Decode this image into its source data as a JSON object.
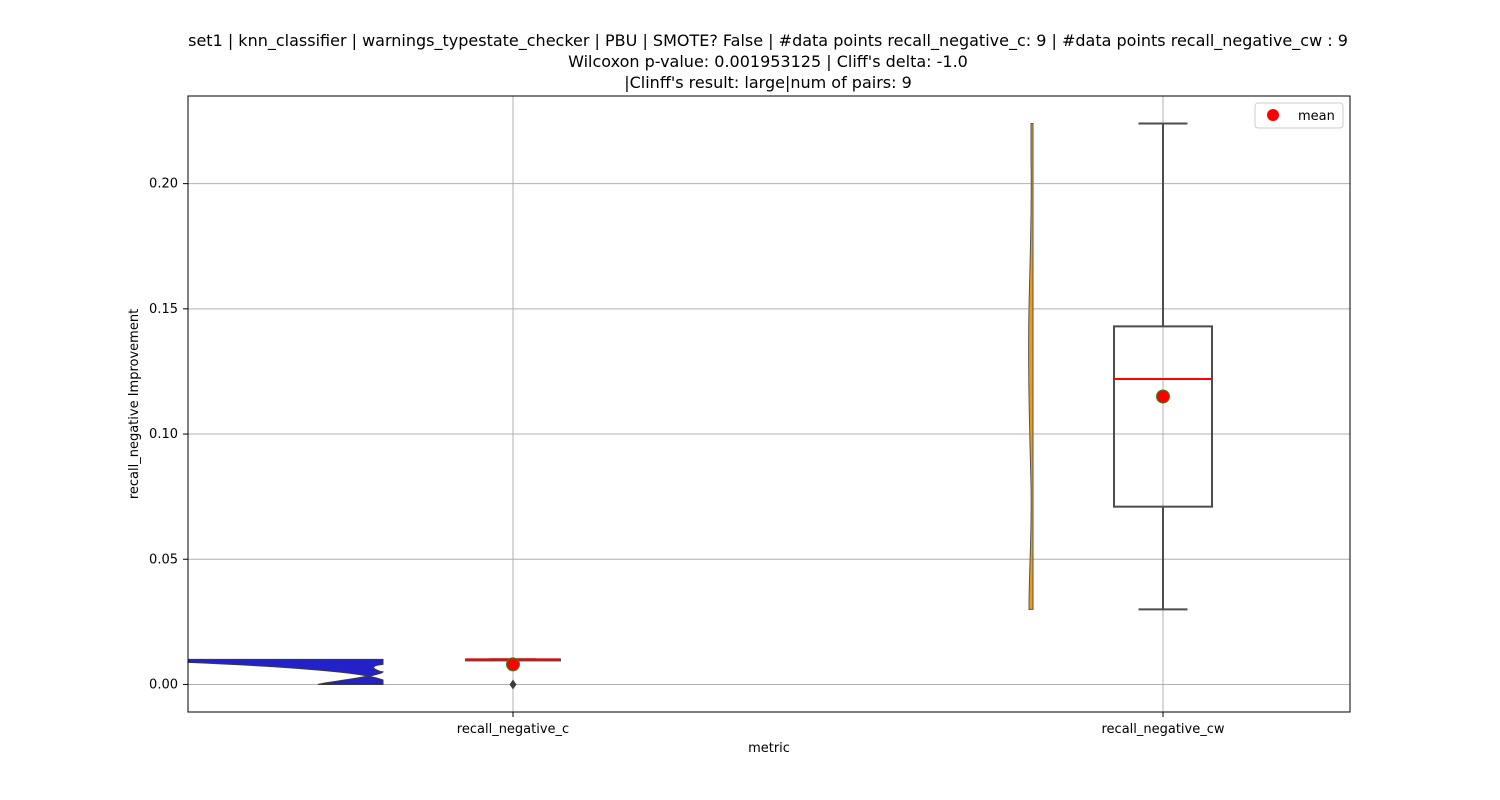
{
  "chart_data": {
    "type": "violin+box",
    "title_lines": [
      "set1 | knn_classifier | warnings_typestate_checker | PBU | SMOTE? False | #data points recall_negative_c: 9 | #data points recall_negative_cw : 9",
      "Wilcoxon p-value: 0.001953125 | Cliff's delta: -1.0",
      "|Clinff's result: large|num of pairs: 9"
    ],
    "xlabel": "metric",
    "ylabel": "recall_negative Improvement",
    "categories": [
      "recall_negative_c",
      "recall_negative_cw"
    ],
    "ylim": [
      -0.011,
      0.235
    ],
    "yticks": [
      0.0,
      0.05,
      0.1,
      0.15,
      0.2
    ],
    "ytick_labels": [
      "0.00",
      "0.05",
      "0.10",
      "0.15",
      "0.20"
    ],
    "grid": true,
    "legend": {
      "position": "top-right",
      "label": "mean"
    },
    "colors": {
      "violin_c": "#2222c8",
      "violin_cw": "#e89c1a",
      "box_edge": "#4d4d4d",
      "median": "#ff0000",
      "mean_marker": "#ff0000",
      "mean_edge": "#2e8b2e",
      "grid": "#b0b0b0"
    },
    "series": [
      {
        "name": "recall_negative_c",
        "box": {
          "whisker_low": 0.01,
          "q1": 0.01,
          "median": 0.01,
          "q3": 0.01,
          "whisker_high": 0.01
        },
        "mean": 0.008,
        "outliers": [
          0.0
        ],
        "violin_range": [
          0.0,
          0.01
        ]
      },
      {
        "name": "recall_negative_cw",
        "box": {
          "whisker_low": 0.03,
          "q1": 0.071,
          "median": 0.122,
          "q3": 0.143,
          "whisker_high": 0.224
        },
        "mean": 0.115,
        "outliers": [],
        "violin_range": [
          0.03,
          0.224
        ]
      }
    ]
  }
}
